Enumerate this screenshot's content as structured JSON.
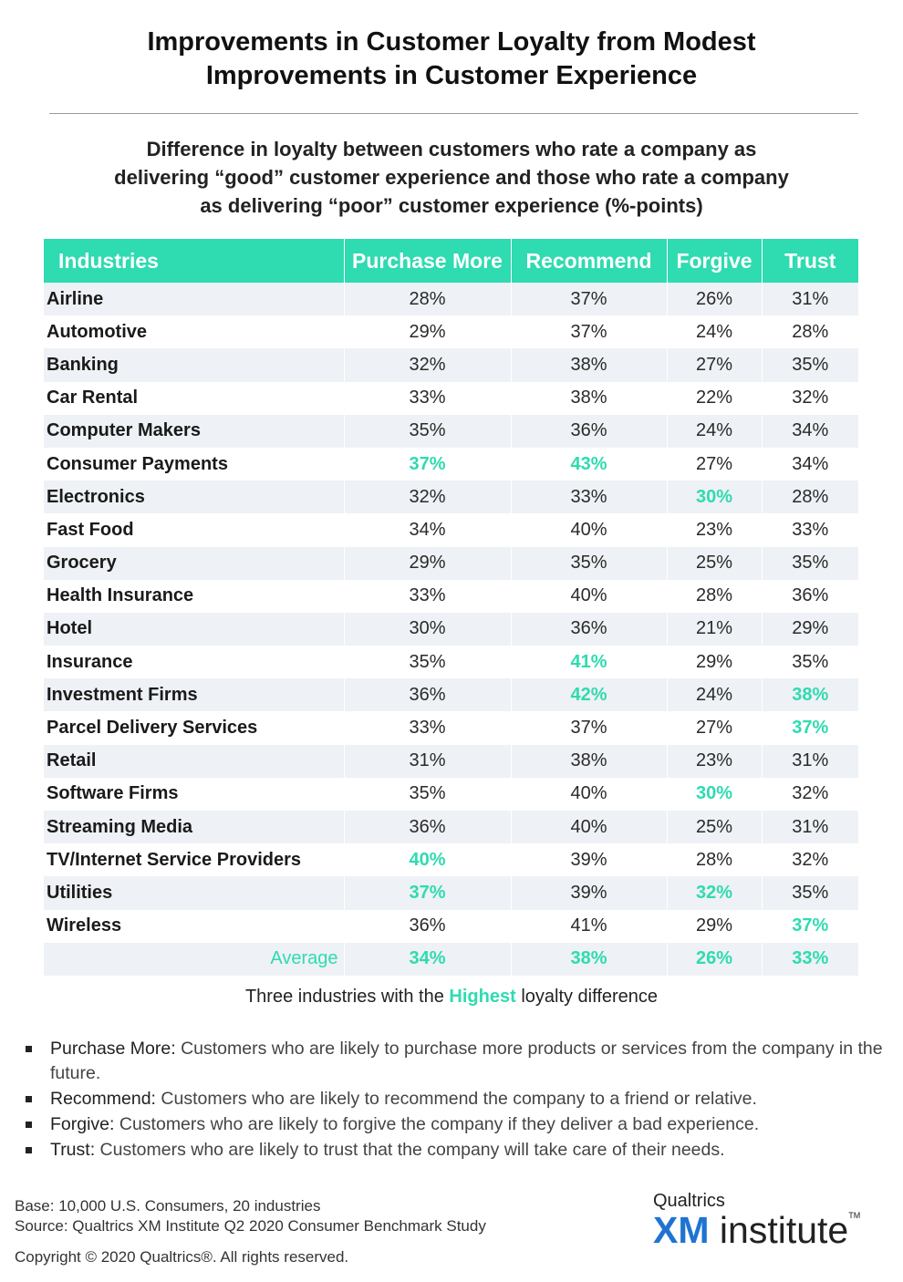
{
  "title": {
    "line1": "Improvements in Customer Loyalty from Modest",
    "line2": "Improvements in Customer Experience"
  },
  "subtitle": {
    "line1": "Difference in loyalty between customers who rate a company as",
    "line2": "delivering “good” customer experience and those who rate a company",
    "line3": "as delivering “poor” customer experience (%-points)"
  },
  "colors": {
    "accent": "#2fdbb0",
    "band": "#eef1f5",
    "logo_blue": "#1f74d1"
  },
  "chart_data": {
    "type": "table",
    "columns": [
      "Industries",
      "Purchase More",
      "Recommend",
      "Forgive",
      "Trust"
    ],
    "rows": [
      {
        "industry": "Airline",
        "values": [
          "28%",
          "37%",
          "26%",
          "31%"
        ],
        "highlight": [
          false,
          false,
          false,
          false
        ]
      },
      {
        "industry": "Automotive",
        "values": [
          "29%",
          "37%",
          "24%",
          "28%"
        ],
        "highlight": [
          false,
          false,
          false,
          false
        ]
      },
      {
        "industry": "Banking",
        "values": [
          "32%",
          "38%",
          "27%",
          "35%"
        ],
        "highlight": [
          false,
          false,
          false,
          false
        ]
      },
      {
        "industry": "Car Rental",
        "values": [
          "33%",
          "38%",
          "22%",
          "32%"
        ],
        "highlight": [
          false,
          false,
          false,
          false
        ]
      },
      {
        "industry": "Computer Makers",
        "values": [
          "35%",
          "36%",
          "24%",
          "34%"
        ],
        "highlight": [
          false,
          false,
          false,
          false
        ]
      },
      {
        "industry": "Consumer Payments",
        "values": [
          "37%",
          "43%",
          "27%",
          "34%"
        ],
        "highlight": [
          true,
          true,
          false,
          false
        ]
      },
      {
        "industry": "Electronics",
        "values": [
          "32%",
          "33%",
          "30%",
          "28%"
        ],
        "highlight": [
          false,
          false,
          true,
          false
        ]
      },
      {
        "industry": "Fast Food",
        "values": [
          "34%",
          "40%",
          "23%",
          "33%"
        ],
        "highlight": [
          false,
          false,
          false,
          false
        ]
      },
      {
        "industry": "Grocery",
        "values": [
          "29%",
          "35%",
          "25%",
          "35%"
        ],
        "highlight": [
          false,
          false,
          false,
          false
        ]
      },
      {
        "industry": "Health Insurance",
        "values": [
          "33%",
          "40%",
          "28%",
          "36%"
        ],
        "highlight": [
          false,
          false,
          false,
          false
        ]
      },
      {
        "industry": "Hotel",
        "values": [
          "30%",
          "36%",
          "21%",
          "29%"
        ],
        "highlight": [
          false,
          false,
          false,
          false
        ]
      },
      {
        "industry": "Insurance",
        "values": [
          "35%",
          "41%",
          "29%",
          "35%"
        ],
        "highlight": [
          false,
          true,
          false,
          false
        ]
      },
      {
        "industry": "Investment Firms",
        "values": [
          "36%",
          "42%",
          "24%",
          "38%"
        ],
        "highlight": [
          false,
          true,
          false,
          true
        ]
      },
      {
        "industry": "Parcel Delivery Services",
        "values": [
          "33%",
          "37%",
          "27%",
          "37%"
        ],
        "highlight": [
          false,
          false,
          false,
          true
        ]
      },
      {
        "industry": "Retail",
        "values": [
          "31%",
          "38%",
          "23%",
          "31%"
        ],
        "highlight": [
          false,
          false,
          false,
          false
        ]
      },
      {
        "industry": "Software Firms",
        "values": [
          "35%",
          "40%",
          "30%",
          "32%"
        ],
        "highlight": [
          false,
          false,
          true,
          false
        ]
      },
      {
        "industry": "Streaming Media",
        "values": [
          "36%",
          "40%",
          "25%",
          "31%"
        ],
        "highlight": [
          false,
          false,
          false,
          false
        ]
      },
      {
        "industry": "TV/Internet Service Providers",
        "values": [
          "40%",
          "39%",
          "28%",
          "32%"
        ],
        "highlight": [
          true,
          false,
          false,
          false
        ]
      },
      {
        "industry": "Utilities",
        "values": [
          "37%",
          "39%",
          "32%",
          "35%"
        ],
        "highlight": [
          true,
          false,
          true,
          false
        ]
      },
      {
        "industry": "Wireless",
        "values": [
          "36%",
          "41%",
          "29%",
          "37%"
        ],
        "highlight": [
          false,
          false,
          false,
          true
        ]
      }
    ],
    "average": {
      "label": "Average",
      "values": [
        "34%",
        "38%",
        "26%",
        "33%"
      ]
    }
  },
  "legend_note": {
    "before": "Three industries with the",
    "highlight": "Highest",
    "after": "loyalty difference"
  },
  "definitions": [
    {
      "term": "Purchase More:",
      "text": "Customers who are likely to purchase more products or services from the company in the future."
    },
    {
      "term": "Recommend:",
      "text": "Customers who are likely to recommend the company to a friend or relative."
    },
    {
      "term": "Forgive:",
      "text": "Customers who are likely to forgive the company if they deliver a bad experience."
    },
    {
      "term": "Trust:",
      "text": "Customers who are likely to trust that the company will take care of their needs."
    }
  ],
  "footer": {
    "base": "Base: 10,000 U.S. Consumers, 20 industries",
    "source": "Source: Qualtrics XM Institute Q2 2020 Consumer Benchmark Study",
    "copyright": "Copyright © 2020 Qualtrics®.  All rights reserved."
  },
  "logo": {
    "brand": "Qualtrics",
    "xm": "XM",
    "institute": "institute",
    "tm": "TM"
  }
}
